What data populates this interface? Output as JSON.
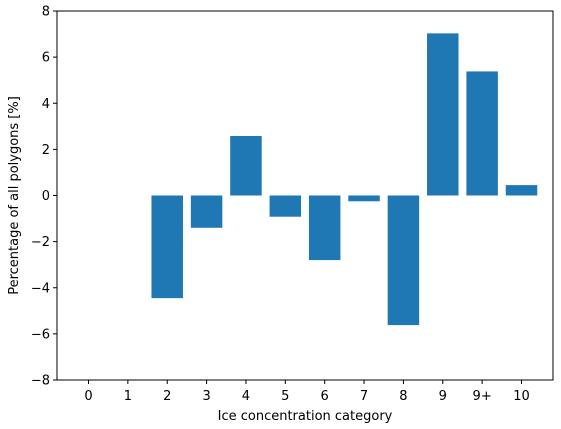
{
  "chart_data": {
    "type": "bar",
    "title": "",
    "xlabel": "Ice concentration category",
    "ylabel": "Percentage of all polygons [%]",
    "categories": [
      "0",
      "1",
      "2",
      "3",
      "4",
      "5",
      "6",
      "7",
      "8",
      "9",
      "9+",
      "10"
    ],
    "values": [
      0,
      0,
      -4.45,
      -1.4,
      2.58,
      -0.92,
      -2.8,
      -0.25,
      -5.62,
      7.03,
      5.38,
      0.45
    ],
    "ylim": [
      -8,
      8
    ],
    "yticks": [
      "−8",
      "−6",
      "−4",
      "−2",
      "0",
      "2",
      "4",
      "6",
      "8"
    ],
    "bar_color": "#1f77b4",
    "grid": false,
    "legend": "none"
  }
}
